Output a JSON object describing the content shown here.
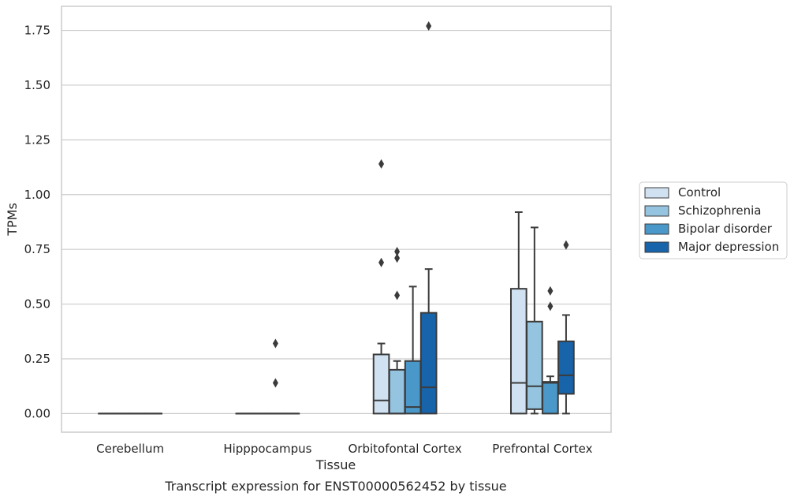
{
  "caption": "Transcript expression for ENST00000562452 by tissue",
  "chart_data": {
    "type": "box",
    "xlabel": "Tissue",
    "ylabel": "TPMs",
    "ylim": [
      -0.085,
      1.86
    ],
    "yticks": [
      "0.00",
      "0.25",
      "0.50",
      "0.75",
      "1.00",
      "1.25",
      "1.50",
      "1.75"
    ],
    "grid": "horizontal",
    "legend_position": "right",
    "categories": [
      "Cerebellum",
      "Hipppocampus",
      "Orbitofontal Cortex",
      "Prefrontal Cortex"
    ],
    "series": [
      {
        "name": "Control",
        "color": "#d0e1f2",
        "boxes": [
          {
            "whislo": 0,
            "q1": 0,
            "med": 0,
            "q3": 0,
            "whishi": 0,
            "fliers": []
          },
          {
            "whislo": 0,
            "q1": 0,
            "med": 0,
            "q3": 0,
            "whishi": 0,
            "fliers": []
          },
          {
            "whislo": 0,
            "q1": 0,
            "med": 0.06,
            "q3": 0.27,
            "whishi": 0.32,
            "fliers": [
              0.69,
              1.14
            ]
          },
          {
            "whislo": 0,
            "q1": 0,
            "med": 0.14,
            "q3": 0.57,
            "whishi": 0.92,
            "fliers": []
          }
        ]
      },
      {
        "name": "Schizophrenia",
        "color": "#94c4df",
        "boxes": [
          {
            "whislo": 0,
            "q1": 0,
            "med": 0,
            "q3": 0,
            "whishi": 0,
            "fliers": []
          },
          {
            "whislo": 0,
            "q1": 0,
            "med": 0,
            "q3": 0,
            "whishi": 0,
            "fliers": []
          },
          {
            "whislo": 0,
            "q1": 0,
            "med": 0,
            "q3": 0.2,
            "whishi": 0.24,
            "fliers": [
              0.54,
              0.71,
              0.74
            ]
          },
          {
            "whislo": 0,
            "q1": 0.02,
            "med": 0.125,
            "q3": 0.42,
            "whishi": 0.85,
            "fliers": []
          }
        ]
      },
      {
        "name": "Bipolar disorder",
        "color": "#4a98c9",
        "boxes": [
          {
            "whislo": 0,
            "q1": 0,
            "med": 0,
            "q3": 0,
            "whishi": 0,
            "fliers": []
          },
          {
            "whislo": 0,
            "q1": 0,
            "med": 0,
            "q3": 0,
            "whishi": 0,
            "fliers": [
              0.14,
              0.32
            ]
          },
          {
            "whislo": 0,
            "q1": 0,
            "med": 0.03,
            "q3": 0.24,
            "whishi": 0.58,
            "fliers": []
          },
          {
            "whislo": 0,
            "q1": 0,
            "med": 0.14,
            "q3": 0.145,
            "whishi": 0.17,
            "fliers": [
              0.49,
              0.56
            ]
          }
        ]
      },
      {
        "name": "Major depression",
        "color": "#1764ab",
        "boxes": [
          {
            "whislo": 0,
            "q1": 0,
            "med": 0,
            "q3": 0,
            "whishi": 0,
            "fliers": []
          },
          {
            "whislo": 0,
            "q1": 0,
            "med": 0,
            "q3": 0,
            "whishi": 0,
            "fliers": []
          },
          {
            "whislo": 0,
            "q1": 0,
            "med": 0.12,
            "q3": 0.46,
            "whishi": 0.66,
            "fliers": [
              1.77
            ]
          },
          {
            "whislo": 0,
            "q1": 0.09,
            "med": 0.175,
            "q3": 0.33,
            "whishi": 0.45,
            "fliers": [
              0.77
            ]
          }
        ]
      }
    ]
  }
}
